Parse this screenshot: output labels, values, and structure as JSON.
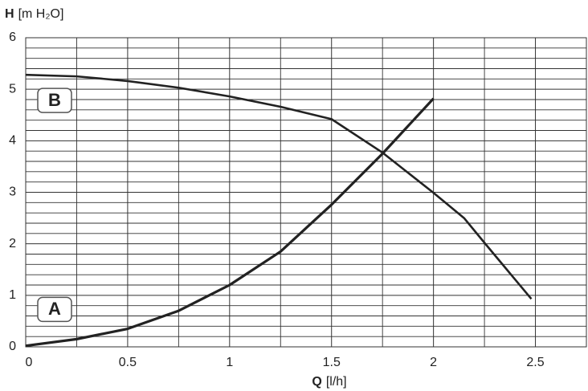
{
  "chart_data": {
    "type": "line",
    "ylabel": {
      "symbol": "H",
      "unit": "[m H₂O]"
    },
    "xlabel": {
      "symbol": "Q",
      "unit": "[l/h]"
    },
    "xlim": [
      0,
      2.75
    ],
    "xticks": [
      0,
      0.5,
      1,
      1.5,
      2,
      2.5
    ],
    "ylim": [
      0,
      6
    ],
    "yticks": [
      0,
      1,
      2,
      3,
      4,
      5,
      6
    ],
    "grid": true,
    "series": [
      {
        "name": "A",
        "color": "#222222",
        "x": [
          0,
          0.25,
          0.5,
          0.75,
          1,
          1.25,
          1.5,
          1.75,
          2
        ],
        "values": [
          0.02,
          0.15,
          0.35,
          0.7,
          1.2,
          1.85,
          2.76,
          3.75,
          4.82
        ]
      },
      {
        "name": "B",
        "color": "#222222",
        "x": [
          0,
          0.25,
          0.5,
          0.75,
          1,
          1.25,
          1.5,
          1.75,
          2,
          2.15,
          2.25,
          2.48
        ],
        "values": [
          5.28,
          5.25,
          5.16,
          5.03,
          4.86,
          4.66,
          4.42,
          3.77,
          2.99,
          2.5,
          2.02,
          0.93
        ]
      }
    ]
  }
}
